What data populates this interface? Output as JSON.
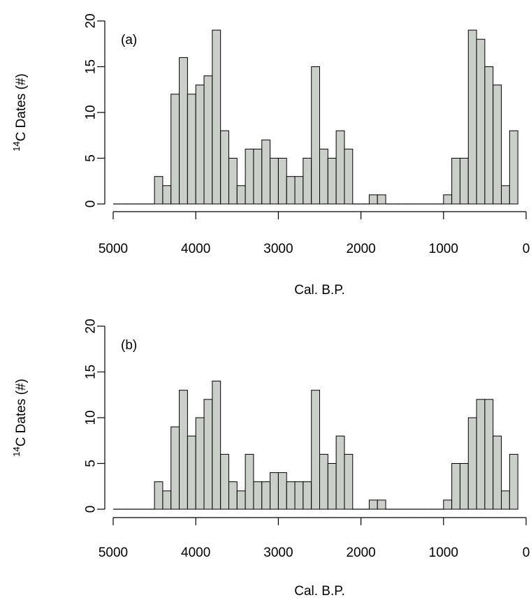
{
  "chart_data": [
    {
      "type": "bar",
      "panel_label": "(a)",
      "xlabel": "Cal. B.P.",
      "ylabel": "C Dates (#)",
      "ylabel_superscript": "14",
      "x_reversed": true,
      "xlim": [
        5000,
        0
      ],
      "ylim": [
        0,
        20
      ],
      "xticks": [
        5000,
        4000,
        3000,
        2000,
        1000,
        0
      ],
      "yticks": [
        0,
        5,
        10,
        15,
        20
      ],
      "bin_width": 100,
      "bin_starts": [
        5000,
        4900,
        4800,
        4700,
        4600,
        4500,
        4400,
        4300,
        4200,
        4100,
        4000,
        3900,
        3800,
        3700,
        3600,
        3500,
        3400,
        3300,
        3200,
        3100,
        3000,
        2900,
        2800,
        2700,
        2600,
        2500,
        2400,
        2300,
        2200,
        2100,
        2000,
        1900,
        1800,
        1700,
        1600,
        1500,
        1400,
        1300,
        1200,
        1100,
        1000,
        900,
        800,
        700,
        600,
        500,
        400,
        300,
        200
      ],
      "values": [
        0,
        0,
        0,
        0,
        0,
        3,
        2,
        12,
        16,
        12,
        13,
        14,
        19,
        8,
        5,
        2,
        6,
        6,
        7,
        5,
        5,
        3,
        3,
        5,
        15,
        6,
        5,
        8,
        6,
        0,
        0,
        1,
        1,
        0,
        0,
        0,
        0,
        0,
        0,
        0,
        1,
        5,
        5,
        19,
        18,
        15,
        13,
        2,
        8
      ]
    },
    {
      "type": "bar",
      "panel_label": "(b)",
      "xlabel": "Cal. B.P.",
      "ylabel": "C Dates (#)",
      "ylabel_superscript": "14",
      "x_reversed": true,
      "xlim": [
        5000,
        0
      ],
      "ylim": [
        0,
        20
      ],
      "xticks": [
        5000,
        4000,
        3000,
        2000,
        1000,
        0
      ],
      "yticks": [
        0,
        5,
        10,
        15,
        20
      ],
      "bin_width": 100,
      "bin_starts": [
        5000,
        4900,
        4800,
        4700,
        4600,
        4500,
        4400,
        4300,
        4200,
        4100,
        4000,
        3900,
        3800,
        3700,
        3600,
        3500,
        3400,
        3300,
        3200,
        3100,
        3000,
        2900,
        2800,
        2700,
        2600,
        2500,
        2400,
        2300,
        2200,
        2100,
        2000,
        1900,
        1800,
        1700,
        1600,
        1500,
        1400,
        1300,
        1200,
        1100,
        1000,
        900,
        800,
        700,
        600,
        500,
        400,
        300,
        200
      ],
      "values": [
        0,
        0,
        0,
        0,
        0,
        3,
        2,
        9,
        13,
        8,
        10,
        12,
        14,
        6,
        3,
        2,
        6,
        3,
        3,
        4,
        4,
        3,
        3,
        3,
        13,
        6,
        5,
        8,
        6,
        0,
        0,
        1,
        1,
        0,
        0,
        0,
        0,
        0,
        0,
        0,
        1,
        5,
        5,
        10,
        12,
        12,
        8,
        2,
        6
      ]
    }
  ]
}
